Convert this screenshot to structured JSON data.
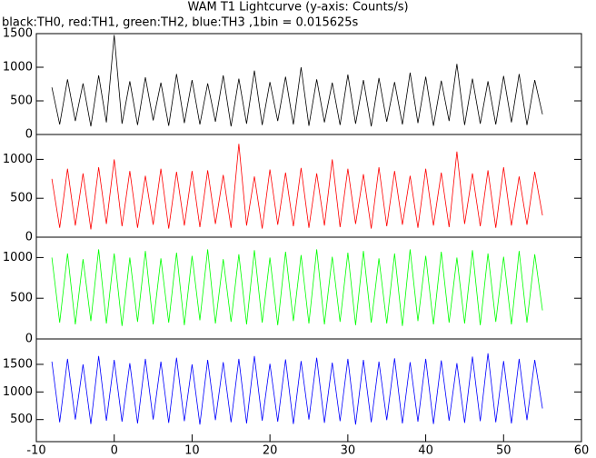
{
  "title": "WAM T1 Lightcurve (y-axis: Counts/s)",
  "subtitle": "black:TH0, red:TH1, green:TH2, blue:TH3 ,1bin = 0.015625s",
  "chart_data": [
    {
      "type": "line",
      "x": [
        -8,
        -7,
        -6,
        -5,
        -4,
        -3,
        -2,
        -1,
        0,
        1,
        2,
        3,
        4,
        5,
        6,
        7,
        8,
        9,
        10,
        11,
        12,
        13,
        14,
        15,
        16,
        17,
        18,
        19,
        20,
        21,
        22,
        23,
        24,
        25,
        26,
        27,
        28,
        29,
        30,
        31,
        32,
        33,
        34,
        35,
        36,
        37,
        38,
        39,
        40,
        41,
        42,
        43,
        44,
        45,
        46,
        47,
        48,
        49,
        50,
        51,
        52,
        53,
        54,
        55
      ],
      "series": [
        {
          "color": "#000000",
          "values": [
            700,
            150,
            820,
            200,
            760,
            120,
            880,
            180,
            1480,
            160,
            790,
            140,
            850,
            210,
            770,
            130,
            900,
            170,
            810,
            150,
            760,
            190,
            880,
            120,
            830,
            160,
            950,
            140,
            780,
            200,
            860,
            150,
            1000,
            130,
            820,
            180,
            770,
            140,
            890,
            160,
            810,
            120,
            840,
            190,
            780,
            150,
            920,
            170,
            860,
            130,
            800,
            200,
            1050,
            140,
            830,
            160,
            790,
            150,
            870,
            180,
            900,
            140,
            810,
            300
          ]
        }
      ],
      "xlim": [
        -10,
        60
      ],
      "ylim": [
        0,
        1500
      ],
      "yticks": [
        0,
        500,
        1000,
        1500
      ]
    },
    {
      "type": "line",
      "x": [
        -8,
        -7,
        -6,
        -5,
        -4,
        -3,
        -2,
        -1,
        0,
        1,
        2,
        3,
        4,
        5,
        6,
        7,
        8,
        9,
        10,
        11,
        12,
        13,
        14,
        15,
        16,
        17,
        18,
        19,
        20,
        21,
        22,
        23,
        24,
        25,
        26,
        27,
        28,
        29,
        30,
        31,
        32,
        33,
        34,
        35,
        36,
        37,
        38,
        39,
        40,
        41,
        42,
        43,
        44,
        45,
        46,
        47,
        48,
        49,
        50,
        51,
        52,
        53,
        54,
        55
      ],
      "series": [
        {
          "color": "#ff0000",
          "values": [
            750,
            120,
            880,
            150,
            820,
            100,
            900,
            170,
            1000,
            140,
            850,
            120,
            790,
            160,
            880,
            110,
            840,
            150,
            850,
            130,
            860,
            170,
            800,
            120,
            1200,
            150,
            780,
            110,
            870,
            160,
            830,
            140,
            890,
            120,
            820,
            150,
            1000,
            130,
            880,
            170,
            810,
            110,
            900,
            140,
            850,
            160,
            790,
            120,
            880,
            150,
            830,
            130,
            1100,
            170,
            820,
            140,
            860,
            120,
            900,
            150,
            780,
            160,
            840,
            280
          ]
        }
      ],
      "xlim": [
        -10,
        60
      ],
      "ylim": [
        0,
        1320
      ],
      "yticks": [
        0,
        500,
        1000
      ]
    },
    {
      "type": "line",
      "x": [
        -8,
        -7,
        -6,
        -5,
        -4,
        -3,
        -2,
        -1,
        0,
        1,
        2,
        3,
        4,
        5,
        6,
        7,
        8,
        9,
        10,
        11,
        12,
        13,
        14,
        15,
        16,
        17,
        18,
        19,
        20,
        21,
        22,
        23,
        24,
        25,
        26,
        27,
        28,
        29,
        30,
        31,
        32,
        33,
        34,
        35,
        36,
        37,
        38,
        39,
        40,
        41,
        42,
        43,
        44,
        45,
        46,
        47,
        48,
        49,
        50,
        51,
        52,
        53,
        54,
        55
      ],
      "series": [
        {
          "color": "#00ff00",
          "values": [
            1000,
            200,
            1050,
            180,
            980,
            220,
            1100,
            190,
            1050,
            160,
            1000,
            210,
            1080,
            180,
            990,
            200,
            1060,
            170,
            1020,
            230,
            1100,
            190,
            980,
            210,
            1040,
            180,
            1090,
            200,
            1000,
            170,
            1070,
            220,
            1030,
            190,
            1100,
            180,
            1010,
            210,
            1060,
            170,
            1080,
            200,
            990,
            190,
            1050,
            160,
            1100,
            220,
            1020,
            180,
            1070,
            200,
            1000,
            190,
            1090,
            170,
            1050,
            210,
            1010,
            180,
            1080,
            200,
            1040,
            350
          ]
        }
      ],
      "xlim": [
        -10,
        60
      ],
      "ylim": [
        0,
        1250
      ],
      "yticks": [
        0,
        500,
        1000
      ]
    },
    {
      "type": "line",
      "x": [
        -8,
        -7,
        -6,
        -5,
        -4,
        -3,
        -2,
        -1,
        0,
        1,
        2,
        3,
        4,
        5,
        6,
        7,
        8,
        9,
        10,
        11,
        12,
        13,
        14,
        15,
        16,
        17,
        18,
        19,
        20,
        21,
        22,
        23,
        24,
        25,
        26,
        27,
        28,
        29,
        30,
        31,
        32,
        33,
        34,
        35,
        36,
        37,
        38,
        39,
        40,
        41,
        42,
        43,
        44,
        45,
        46,
        47,
        48,
        49,
        50,
        51,
        52,
        53,
        54,
        55
      ],
      "series": [
        {
          "color": "#0000ff",
          "values": [
            1550,
            450,
            1600,
            500,
            1500,
            420,
            1650,
            480,
            1580,
            460,
            1520,
            430,
            1600,
            500,
            1550,
            440,
            1620,
            470,
            1500,
            410,
            1580,
            490,
            1540,
            450,
            1600,
            430,
            1650,
            480,
            1510,
            460,
            1590,
            420,
            1560,
            500,
            1620,
            440,
            1530,
            470,
            1600,
            410,
            1580,
            450,
            1550,
            490,
            1610,
            430,
            1540,
            460,
            1600,
            420,
            1570,
            480,
            1520,
            440,
            1640,
            470,
            1700,
            450,
            1560,
            430,
            1600,
            490,
            1580,
            700
          ]
        }
      ],
      "xlim": [
        -10,
        60
      ],
      "ylim": [
        100,
        1960
      ],
      "yticks": [
        500,
        1000,
        1500
      ],
      "xticks": [
        -10,
        0,
        10,
        20,
        30,
        40,
        50,
        60
      ]
    }
  ]
}
